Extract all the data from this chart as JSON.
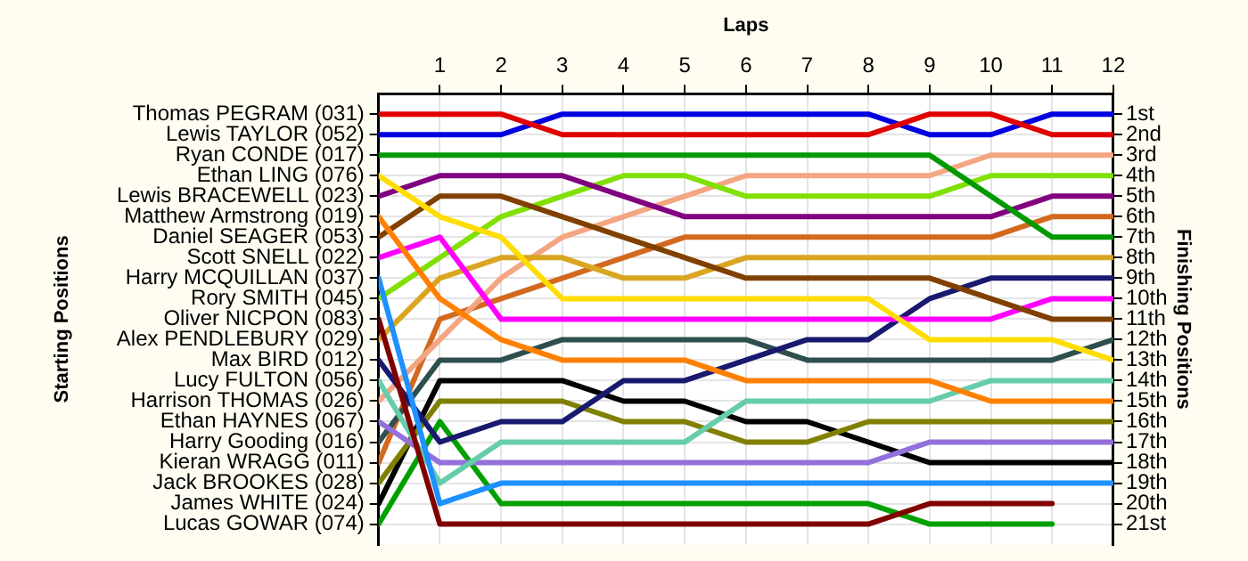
{
  "chart_data": {
    "type": "line",
    "xlabel": "Laps",
    "ylabel": "Finishing Positions",
    "x": [
      0,
      1,
      2,
      3,
      4,
      5,
      6,
      7,
      8,
      9,
      10,
      11,
      12
    ],
    "xlim": [
      0,
      12
    ],
    "xticks": [
      1,
      2,
      3,
      4,
      5,
      6,
      7,
      8,
      9,
      10,
      11,
      12
    ],
    "ylim": [
      22,
      0
    ],
    "yticks": [
      {
        "value": 1,
        "label": "1st"
      },
      {
        "value": 2,
        "label": "2nd"
      },
      {
        "value": 3,
        "label": "3rd"
      },
      {
        "value": 4,
        "label": "4th"
      },
      {
        "value": 5,
        "label": "5th"
      },
      {
        "value": 6,
        "label": "6th"
      },
      {
        "value": 7,
        "label": "7th"
      },
      {
        "value": 8,
        "label": "8th"
      },
      {
        "value": 9,
        "label": "9th"
      },
      {
        "value": 10,
        "label": "10th"
      },
      {
        "value": 11,
        "label": "11th"
      },
      {
        "value": 12,
        "label": "12th"
      },
      {
        "value": 13,
        "label": "13th"
      },
      {
        "value": 14,
        "label": "14th"
      },
      {
        "value": 15,
        "label": "15th"
      },
      {
        "value": 16,
        "label": "16th"
      },
      {
        "value": 17,
        "label": "17th"
      },
      {
        "value": 18,
        "label": "18th"
      },
      {
        "value": 19,
        "label": "19th"
      },
      {
        "value": 20,
        "label": "20th"
      },
      {
        "value": 21,
        "label": "21st"
      }
    ],
    "grid": true,
    "legend": false,
    "marker": "none",
    "line_style": "solid",
    "annotations": [
      "Starting Positions",
      "Thomas PEGRAM (031)",
      "Lewis TAYLOR (052)",
      "Ryan CONDE (017)",
      "Ethan LING (076)",
      "Lewis BRACEWELL (023)",
      "Matthew Armstrong (019)",
      "Daniel SEAGER (053)",
      "Scott SNELL (022)",
      "Harry MCQUILLAN (037)",
      "Rory SMITH (045)",
      "Oliver NICPON (083)",
      "Alex PENDLEBURY (029)",
      "Max BIRD (012)",
      "Lucy FULTON (056)",
      "Harrison THOMAS (026)",
      "Ethan HAYNES (067)",
      "Harry Gooding (016)",
      "Kieran WRAGG (011)",
      "Jack BROOKES (028)",
      "James WHITE (024)",
      "Lucas GOWAR (074)"
    ],
    "series": [
      {
        "color": "#e00000",
        "values": [
          1,
          1,
          1,
          2,
          2,
          2,
          2,
          2,
          2,
          1,
          1,
          2,
          2
        ]
      },
      {
        "color": "#0000e0",
        "values": [
          2,
          2,
          2,
          1,
          1,
          1,
          1,
          1,
          1,
          2,
          2,
          1,
          1
        ]
      },
      {
        "color": "#009900",
        "values": [
          3,
          3,
          3,
          3,
          3,
          3,
          3,
          3,
          3,
          3,
          5,
          7,
          7
        ]
      },
      {
        "color": "#ffdd00",
        "values": [
          4,
          6,
          7,
          10,
          10,
          10,
          10,
          10,
          10,
          12,
          12,
          12,
          13
        ]
      },
      {
        "color": "#800080",
        "values": [
          5,
          4,
          4,
          4,
          5,
          6,
          6,
          6,
          6,
          6,
          6,
          5,
          5
        ]
      },
      {
        "color": "#ff8000",
        "values": [
          6,
          10,
          12,
          13,
          13,
          13,
          14,
          14,
          14,
          14,
          15,
          15,
          15
        ]
      },
      {
        "color": "#804000",
        "values": [
          7,
          5,
          5,
          6,
          7,
          8,
          9,
          9,
          9,
          9,
          10,
          11,
          11
        ]
      },
      {
        "color": "#ff00ff",
        "values": [
          8,
          7,
          11,
          11,
          11,
          11,
          11,
          11,
          11,
          11,
          11,
          10,
          10
        ]
      },
      {
        "color": "#1e90ff",
        "values": [
          9,
          20,
          19,
          19,
          19,
          19,
          19,
          19,
          19,
          19,
          19,
          19,
          19
        ]
      },
      {
        "color": "#80e000",
        "values": [
          10,
          8,
          6,
          5,
          4,
          4,
          5,
          5,
          5,
          5,
          4,
          4,
          4
        ]
      },
      {
        "color": "#800000",
        "values": [
          11,
          21,
          21,
          21,
          21,
          21,
          21,
          21,
          21,
          20,
          20,
          20,
          null
        ]
      },
      {
        "color": "#daa520",
        "values": [
          12,
          9,
          8,
          8,
          9,
          9,
          8,
          8,
          8,
          8,
          8,
          8,
          8
        ]
      },
      {
        "color": "#191970",
        "values": [
          13,
          17,
          16,
          16,
          14,
          14,
          13,
          12,
          12,
          10,
          9,
          9,
          9
        ]
      },
      {
        "color": "#66cdaa",
        "values": [
          14,
          19,
          17,
          17,
          17,
          17,
          15,
          15,
          15,
          15,
          14,
          14,
          14
        ]
      },
      {
        "color": "#f4a582",
        "values": [
          15,
          12,
          9,
          7,
          6,
          5,
          4,
          4,
          4,
          4,
          3,
          3,
          3
        ]
      },
      {
        "color": "#9370db",
        "values": [
          16,
          18,
          18,
          18,
          18,
          18,
          18,
          18,
          18,
          17,
          17,
          17,
          17
        ]
      },
      {
        "color": "#2f4f4f",
        "values": [
          17,
          13,
          13,
          12,
          12,
          12,
          12,
          13,
          13,
          13,
          13,
          13,
          12
        ]
      },
      {
        "color": "#d2691e",
        "values": [
          18,
          11,
          10,
          9,
          8,
          7,
          7,
          7,
          7,
          7,
          7,
          6,
          6
        ]
      },
      {
        "color": "#808000",
        "values": [
          19,
          15,
          15,
          15,
          16,
          16,
          17,
          17,
          16,
          16,
          16,
          16,
          16
        ]
      },
      {
        "color": "#000000",
        "values": [
          20,
          14,
          14,
          14,
          15,
          15,
          16,
          16,
          17,
          18,
          18,
          18,
          18
        ]
      },
      {
        "color": "#00a000",
        "values": [
          21,
          16,
          20,
          20,
          20,
          20,
          20,
          20,
          20,
          21,
          21,
          21,
          null
        ]
      }
    ]
  }
}
